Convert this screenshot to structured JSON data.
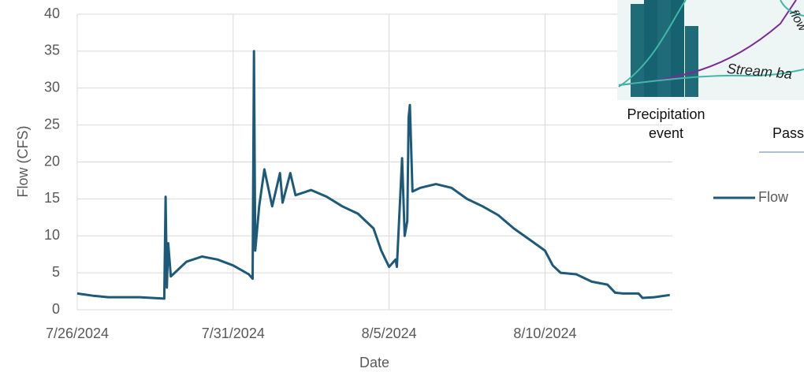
{
  "chart_data": {
    "type": "line",
    "x_label": "Date",
    "y_label": "Flow (CFS)",
    "xlim": [
      "2024-07-26T00:00",
      "2024-08-14T02:00"
    ],
    "xticks": [
      {
        "value": "2024-07-26T00:00",
        "label": "7/26/2024"
      },
      {
        "value": "2024-07-31T00:00",
        "label": "7/31/2024"
      },
      {
        "value": "2024-08-05T00:00",
        "label": "8/5/2024"
      },
      {
        "value": "2024-08-10T00:00",
        "label": "8/10/2024"
      }
    ],
    "ylim": [
      0,
      40
    ],
    "yticks": [
      0,
      5,
      10,
      15,
      20,
      25,
      30,
      35,
      40
    ],
    "grid": true,
    "legend": "right",
    "x": [
      "2024-07-26T00:00",
      "2024-07-26T12:00",
      "2024-07-27T00:00",
      "2024-07-28T00:00",
      "2024-07-28T19:00",
      "2024-07-28T20:00",
      "2024-07-28T21:00",
      "2024-07-28T22:00",
      "2024-07-29T00:00",
      "2024-07-29T12:00",
      "2024-07-30T00:00",
      "2024-07-30T12:00",
      "2024-07-31T00:00",
      "2024-07-31T12:00",
      "2024-07-31T15:00",
      "2024-07-31T16:00",
      "2024-07-31T17:00",
      "2024-07-31T20:00",
      "2024-08-01T00:00",
      "2024-08-01T06:00",
      "2024-08-01T12:00",
      "2024-08-01T14:00",
      "2024-08-01T20:00",
      "2024-08-02T00:00",
      "2024-08-02T12:00",
      "2024-08-03T00:00",
      "2024-08-03T12:00",
      "2024-08-04T00:00",
      "2024-08-04T12:00",
      "2024-08-04T18:00",
      "2024-08-05T00:00",
      "2024-08-05T05:00",
      "2024-08-05T06:00",
      "2024-08-05T10:00",
      "2024-08-05T12:00",
      "2024-08-05T14:00",
      "2024-08-05T15:00",
      "2024-08-05T16:00",
      "2024-08-05T18:00",
      "2024-08-06T00:00",
      "2024-08-06T12:00",
      "2024-08-07T00:00",
      "2024-08-07T12:00",
      "2024-08-08T00:00",
      "2024-08-08T12:00",
      "2024-08-09T00:00",
      "2024-08-09T12:00",
      "2024-08-10T00:00",
      "2024-08-10T06:00",
      "2024-08-10T12:00",
      "2024-08-11T00:00",
      "2024-08-11T12:00",
      "2024-08-12T00:00",
      "2024-08-12T06:00",
      "2024-08-12T12:00",
      "2024-08-13T00:00",
      "2024-08-13T03:00",
      "2024-08-13T12:00",
      "2024-08-14T00:00"
    ],
    "series": [
      {
        "name": "Flow",
        "color": "#1d5a7a",
        "values": [
          2.2,
          1.9,
          1.7,
          1.7,
          1.5,
          15.3,
          3,
          9,
          4.5,
          6.5,
          7.2,
          6.8,
          6.0,
          4.8,
          4.2,
          35,
          8,
          14,
          19,
          14,
          18.5,
          14.5,
          18.5,
          15.5,
          16.2,
          15.3,
          14,
          13,
          11,
          8,
          5.8,
          6.8,
          5.8,
          20.5,
          10,
          12,
          26,
          27.7,
          16,
          16.5,
          17,
          16.5,
          15,
          14,
          12.8,
          11,
          9.5,
          8,
          6,
          5,
          4.8,
          3.8,
          3.4,
          2.3,
          2.2,
          2.2,
          1.6,
          1.7,
          2.0
        ]
      }
    ]
  },
  "inset": {
    "labels": [
      "flow",
      "Stream ba",
      "Precipitation",
      "event",
      "Pass"
    ]
  }
}
